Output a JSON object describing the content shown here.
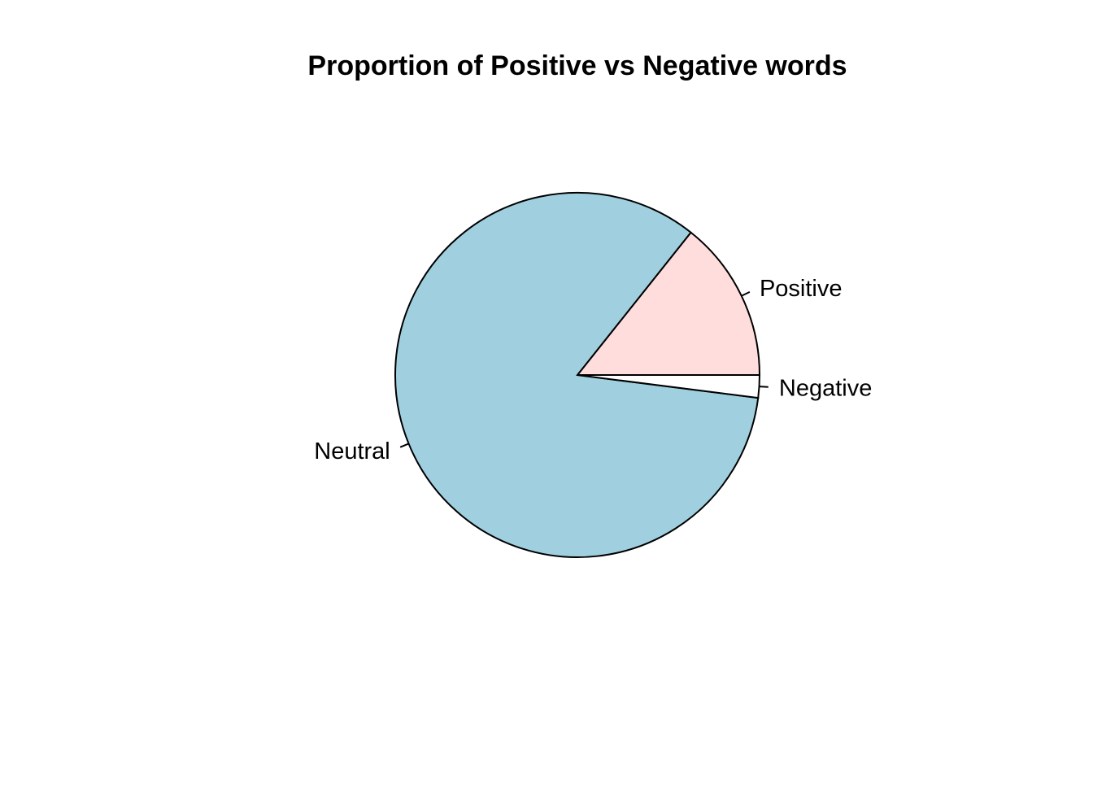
{
  "chart_data": {
    "type": "pie",
    "title": "Proportion of Positive vs Negative words",
    "slices": [
      {
        "label": "Positive",
        "value": 14.3,
        "color": "#FFDDDD"
      },
      {
        "label": "Neutral",
        "value": 83.7,
        "color": "#A0CFE0"
      },
      {
        "label": "Negative",
        "value": 2.0,
        "color": "#FFFFFF"
      }
    ],
    "direction": "counterclockwise",
    "start_angle": "3-o'clock",
    "legend": "none"
  }
}
